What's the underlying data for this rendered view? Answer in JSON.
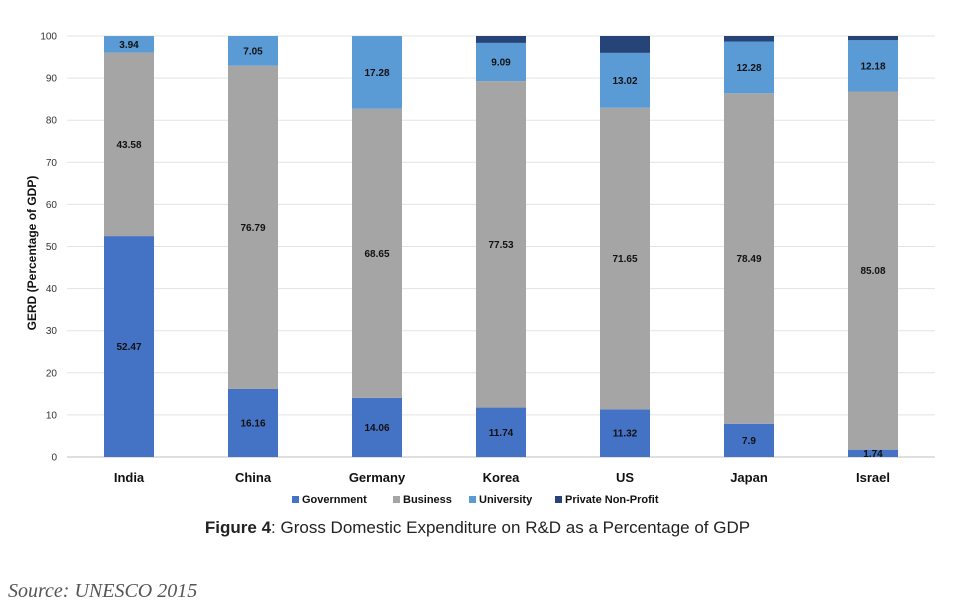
{
  "chart_data": {
    "type": "bar",
    "stacked": true,
    "categories": [
      "India",
      "China",
      "Germany",
      "Korea",
      "US",
      "Japan",
      "Israel"
    ],
    "series": [
      {
        "name": "Government",
        "color": "#4472c4",
        "values": [
          52.47,
          16.16,
          14.06,
          11.74,
          11.32,
          7.9,
          1.74
        ]
      },
      {
        "name": "Business",
        "color": "#a5a5a5",
        "values": [
          43.58,
          76.79,
          68.65,
          77.53,
          71.65,
          78.49,
          85.08
        ]
      },
      {
        "name": "University",
        "color": "#5b9bd5",
        "values": [
          3.94,
          7.05,
          17.28,
          9.09,
          13.02,
          12.28,
          12.18
        ]
      },
      {
        "name": "Private Non-Profit",
        "color": "#264478",
        "values": [
          0,
          0,
          0,
          1.64,
          4.01,
          1.33,
          1.0
        ]
      }
    ],
    "labels": [
      [
        "52.47",
        "16.16",
        "14.06",
        "11.74",
        "11.32",
        "7.9",
        "1.74"
      ],
      [
        "43.58",
        "76.79",
        "68.65",
        "77.53",
        "71.65",
        "78.49",
        "85.08"
      ],
      [
        "3.94",
        "7.05",
        "17.28",
        "9.09",
        "13.02",
        "12.28",
        "12.18"
      ],
      [
        "",
        "",
        "",
        "",
        "",
        "",
        ""
      ]
    ],
    "ylabel": "GERD (Percentage of GDP)",
    "ylim": [
      0,
      100
    ],
    "yticks": [
      0,
      10,
      20,
      30,
      40,
      50,
      60,
      70,
      80,
      90,
      100
    ],
    "grid": true,
    "legend": "bottom"
  },
  "caption": {
    "prefix": "Figure 4",
    "text": ": Gross Domestic Expenditure on R&D as a Percentage of GDP"
  },
  "source": "Source: UNESCO 2015"
}
